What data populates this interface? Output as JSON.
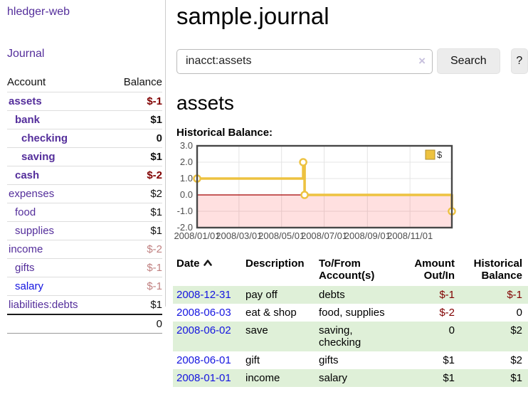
{
  "colors": {
    "link_purple": "#542e9b",
    "link_blue": "#1414e0",
    "negative_strong": "#800000",
    "negative_soft": "#c08080",
    "row_shade_green": "#dff0d8",
    "chart_series_gold": "#edc240",
    "chart_zero_line_red": "#a40000",
    "chart_negative_fill_pink": "#fbdcdc"
  },
  "sidebar": {
    "brand": "hledger-web",
    "journal_label": "Journal",
    "accounts_table": {
      "headers": {
        "account": "Account",
        "balance": "Balance"
      },
      "rows": [
        {
          "name": "assets",
          "depth": 1,
          "bold": true,
          "name_color": "purple",
          "balance": "$-1",
          "balance_style": "neg-strong",
          "balance_bold": true
        },
        {
          "name": "bank",
          "depth": 2,
          "bold": true,
          "name_color": "purple",
          "balance": "$1",
          "balance_style": "plain",
          "balance_bold": true
        },
        {
          "name": "checking",
          "depth": 3,
          "bold": true,
          "name_color": "purple",
          "balance": "0",
          "balance_style": "plain",
          "balance_bold": true
        },
        {
          "name": "saving",
          "depth": 3,
          "bold": true,
          "name_color": "purple",
          "balance": "$1",
          "balance_style": "plain",
          "balance_bold": true
        },
        {
          "name": "cash",
          "depth": 2,
          "bold": true,
          "name_color": "purple",
          "balance": "$-2",
          "balance_style": "neg-strong",
          "balance_bold": true
        },
        {
          "name": "expenses",
          "depth": 1,
          "bold": false,
          "name_color": "purple",
          "balance": "$2",
          "balance_style": "plain",
          "balance_bold": false
        },
        {
          "name": "food",
          "depth": 2,
          "bold": false,
          "name_color": "purple",
          "balance": "$1",
          "balance_style": "plain",
          "balance_bold": false
        },
        {
          "name": "supplies",
          "depth": 2,
          "bold": false,
          "name_color": "purple",
          "balance": "$1",
          "balance_style": "plain",
          "balance_bold": false
        },
        {
          "name": "income",
          "depth": 1,
          "bold": false,
          "name_color": "purple",
          "balance": "$-2",
          "balance_style": "neg-soft",
          "balance_bold": false
        },
        {
          "name": "gifts",
          "depth": 2,
          "bold": false,
          "name_color": "purple",
          "balance": "$-1",
          "balance_style": "neg-soft",
          "balance_bold": false
        },
        {
          "name": "salary",
          "depth": 2,
          "bold": false,
          "name_color": "blue",
          "balance": "$-1",
          "balance_style": "neg-soft",
          "balance_bold": false
        },
        {
          "name": "liabilities:debts",
          "depth": 1,
          "bold": false,
          "name_color": "purple",
          "balance": "$1",
          "balance_style": "plain",
          "balance_bold": false
        }
      ],
      "total": "0"
    }
  },
  "header": {
    "title": "sample.journal"
  },
  "search": {
    "value": "inacct:assets",
    "clear_icon": "×",
    "button_label": "Search",
    "help_label": "?"
  },
  "account_page": {
    "heading": "assets",
    "chart_heading": "Historical Balance:"
  },
  "chart_data": {
    "type": "line",
    "step": true,
    "title": "Historical Balance:",
    "legend": {
      "label": "$",
      "position": "top-right"
    },
    "ylim": [
      -2,
      3
    ],
    "y_ticks": [
      {
        "value": 3,
        "label": "3.0"
      },
      {
        "value": 2,
        "label": "2.0"
      },
      {
        "value": 1,
        "label": "1.0"
      },
      {
        "value": 0,
        "label": "0.0"
      },
      {
        "value": -1,
        "label": "-1.0"
      },
      {
        "value": -2,
        "label": "-2.0"
      }
    ],
    "xlim_days": [
      0,
      365
    ],
    "x_ticks": [
      {
        "day": 0,
        "label": "2008/01/01"
      },
      {
        "day": 60,
        "label": "2008/03/01"
      },
      {
        "day": 121,
        "label": "2008/05/01"
      },
      {
        "day": 182,
        "label": "2008/07/01"
      },
      {
        "day": 244,
        "label": "2008/09/01"
      },
      {
        "day": 305,
        "label": "2008/11/01"
      }
    ],
    "series": [
      {
        "name": "$",
        "points": [
          {
            "date": "2008-01-01",
            "day": 0,
            "y": 1
          },
          {
            "date": "2008-06-01",
            "day": 152,
            "y": 2
          },
          {
            "date": "2008-06-03",
            "day": 154,
            "y": 0
          },
          {
            "date": "2008-12-31",
            "day": 365,
            "y": -1
          }
        ]
      }
    ],
    "negative_region_shaded": true,
    "grid": true
  },
  "register_table": {
    "headers": {
      "date": "Date",
      "description": "Description",
      "accounts": "To/From Account(s)",
      "amount": "Amount Out/In",
      "balance": "Historical Balance"
    },
    "sort": {
      "column": "date",
      "direction": "asc"
    },
    "rows": [
      {
        "date": "2008-12-31",
        "description": "pay off",
        "accounts": "debts",
        "amount": "$-1",
        "amount_negative": true,
        "balance": "$-1",
        "balance_negative": true,
        "shaded": true
      },
      {
        "date": "2008-06-03",
        "description": "eat & shop",
        "accounts": "food, supplies",
        "amount": "$-2",
        "amount_negative": true,
        "balance": "0",
        "balance_negative": false,
        "shaded": false
      },
      {
        "date": "2008-06-02",
        "description": "save",
        "accounts": "saving, checking",
        "amount": "0",
        "amount_negative": false,
        "balance": "$2",
        "balance_negative": false,
        "shaded": true
      },
      {
        "date": "2008-06-01",
        "description": "gift",
        "accounts": "gifts",
        "amount": "$1",
        "amount_negative": false,
        "balance": "$2",
        "balance_negative": false,
        "shaded": false
      },
      {
        "date": "2008-01-01",
        "description": "income",
        "accounts": "salary",
        "amount": "$1",
        "amount_negative": false,
        "balance": "$1",
        "balance_negative": false,
        "shaded": true
      }
    ]
  }
}
